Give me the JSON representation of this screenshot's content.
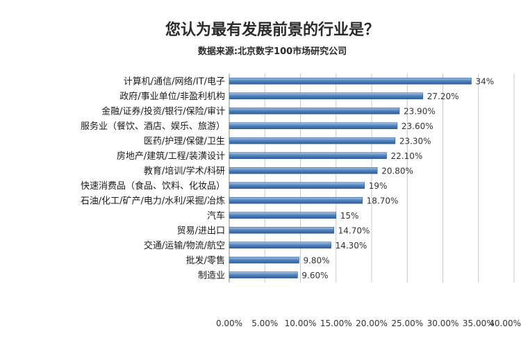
{
  "chart_data": {
    "type": "bar",
    "orientation": "horizontal",
    "title": "您认为最有发展前景的行业是？",
    "subtitle": "数据来源:北京数字100市场研究公司",
    "categories": [
      "计算机/通信/网络/IT/电子",
      "政府/事业单位/非盈利机构",
      "金融/证券/投资/银行/保险/审计",
      "服务业（餐饮、酒店、娱乐、旅游）",
      "医药/护理/保健/卫生",
      "房地产/建筑/工程/装潢设计",
      "教育/培训/学术/科研",
      "快速消费品（食品、饮料、化妆品）",
      "石油/化工/矿产/电力/水利/采掘/冶炼",
      "汽车",
      "贸易/进出口",
      "交通/运输/物流/航空",
      "批发/零售",
      "制造业"
    ],
    "values": [
      34,
      27.2,
      23.9,
      23.6,
      23.3,
      22.1,
      20.8,
      19,
      18.7,
      15,
      14.7,
      14.3,
      9.8,
      9.6
    ],
    "value_labels": [
      "34%",
      "27.20%",
      "23.90%",
      "23.60%",
      "23.30%",
      "22.10%",
      "20.80%",
      "19%",
      "18.70%",
      "15%",
      "14.70%",
      "14.30%",
      "9.80%",
      "9.60%"
    ],
    "xlim": [
      0,
      40
    ],
    "x_ticks": [
      0,
      5,
      10,
      15,
      20,
      25,
      30,
      35,
      40
    ],
    "x_tick_labels": [
      "0.00%",
      "5.00%",
      "10.00%",
      "15.00%",
      "20.00%",
      "25.00%",
      "30.00%",
      "35.00%",
      "40.00%"
    ],
    "grid": true,
    "bar_color": "#4f81bd",
    "bar_color_dark": "#2f5f96"
  }
}
